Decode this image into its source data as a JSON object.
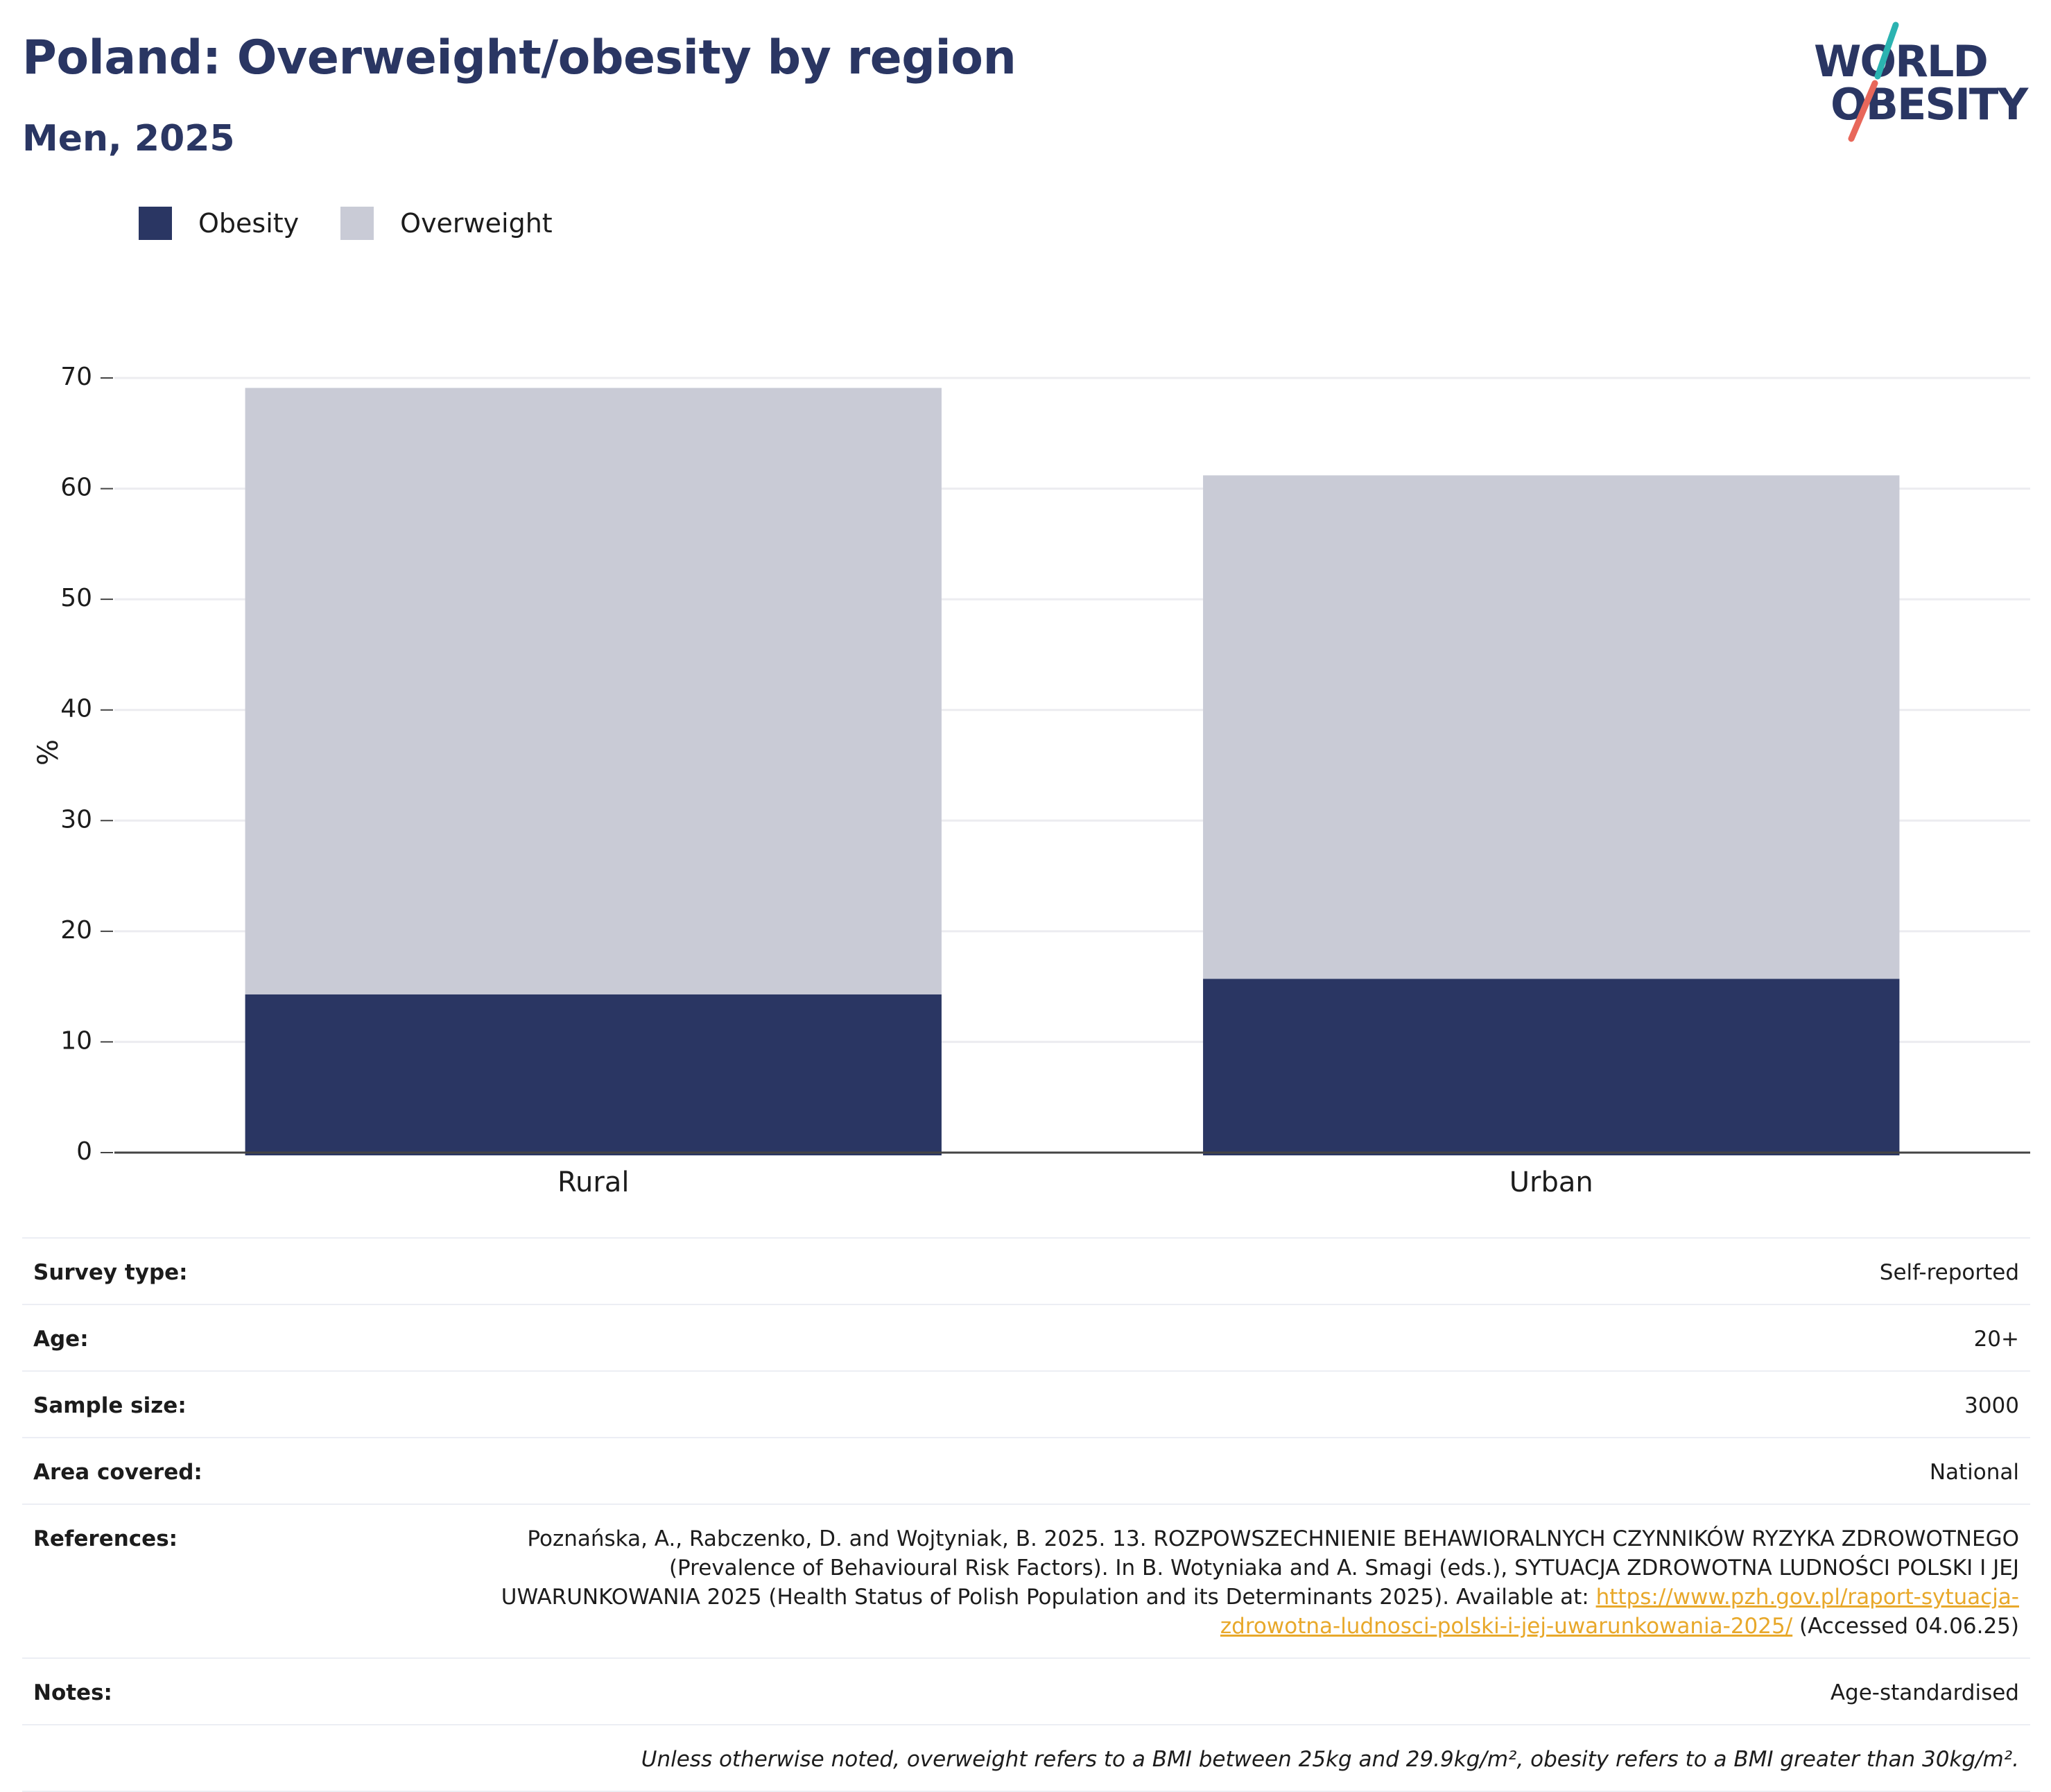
{
  "header": {
    "title": "Poland: Overweight/obesity by region",
    "subtitle": "Men, 2025"
  },
  "logo": {
    "line1": "WORLD",
    "line2": "OBESITY",
    "colors": {
      "text": "#2a3663",
      "slash_top": "#2bb3b1",
      "slash_bottom": "#e8675a"
    }
  },
  "legend": {
    "items": [
      {
        "label": "Obesity",
        "color": "#2a3663"
      },
      {
        "label": "Overweight",
        "color": "#c9cbd6"
      }
    ]
  },
  "chart_data": {
    "type": "bar",
    "stacked": true,
    "categories": [
      "Rural",
      "Urban"
    ],
    "series": [
      {
        "name": "Obesity",
        "values": [
          14.3,
          15.7
        ],
        "color": "#2a3663"
      },
      {
        "name": "Overweight",
        "values": [
          54.8,
          45.5
        ],
        "color": "#c9cbd6"
      }
    ],
    "ylabel": "%",
    "ylim": [
      0,
      70
    ],
    "yticks": [
      0,
      10,
      20,
      30,
      40,
      50,
      60,
      70
    ],
    "grid": true,
    "legend_position": "top-left"
  },
  "meta": {
    "survey_type": {
      "label": "Survey type:",
      "value": "Self-reported"
    },
    "age": {
      "label": "Age:",
      "value": "20+"
    },
    "sample_size": {
      "label": "Sample size:",
      "value": "3000"
    },
    "area_covered": {
      "label": "Area covered:",
      "value": "National"
    },
    "references": {
      "label": "References:",
      "text": "Poznańska, A., Rabczenko, D. and Wojtyniak, B. 2025. 13. ROZPOWSZECHNIENIE BEHAWIORALNYCH CZYNNIKÓW RYZYKA ZDROWOTNEGO (Prevalence of Behavioural Risk Factors). In B. Wotyniaka and A. Smagi (eds.), SYTUACJA ZDROWOTNA LUDNOŚCI POLSKI I JEJ UWARUNKOWANIA 2025 (Health Status of Polish Population and its Determinants 2025). Available at:",
      "link": "https://www.pzh.gov.pl/raport-sytuacja-zdrowotna-ludnosci-polski-i-jej-uwarunkowania-2025/",
      "accessed": "(Accessed 04.06.25)"
    },
    "notes": {
      "label": "Notes:",
      "value": "Age-standardised"
    },
    "footnote": "Unless otherwise noted, overweight refers to a BMI between 25kg and 29.9kg/m², obesity refers to a BMI greater than 30kg/m²."
  }
}
